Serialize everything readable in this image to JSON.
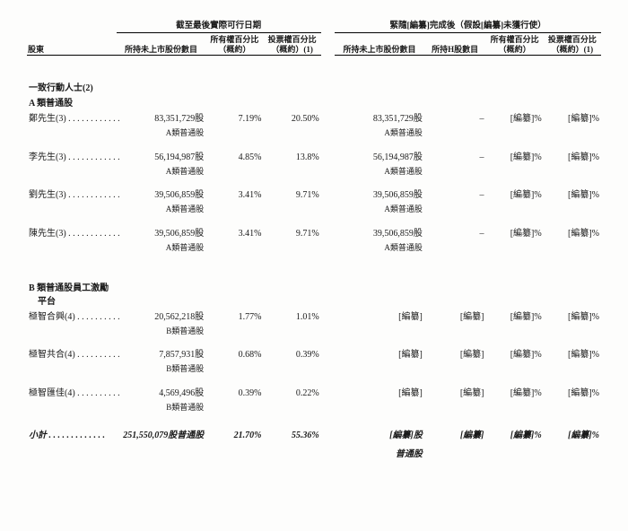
{
  "header": {
    "group_left": "截至最後實際可行日期",
    "group_right": "緊隨[編纂]完成後（假設[編纂]未獲行使）",
    "col_shareholder": "股東",
    "col_unlisted_shares": "所持未上市股份數目",
    "col_all_pct": "所有權百分比\n（概約）",
    "col_vote_pct": "投票權百分比\n（概約）(1)",
    "col_unlisted_shares_r": "所持未上市股份數目",
    "col_h_shares": "所持H股數目",
    "col_all_pct_r": "所有權百分比\n（概約）",
    "col_vote_pct_r": "投票權百分比\n（概約）(1)"
  },
  "sections": {
    "concert": "一致行動人士(2)",
    "classA": "A 類普通股",
    "classB_incentive": "B 類普通股員工激勵",
    "platform": "平台"
  },
  "share_note_A": "A類普通股",
  "share_note_B": "B類普通股",
  "subtotal_note": "普通股",
  "rows": {
    "r1": {
      "name": "鄭先生(3) . . . . . . . . . . . .",
      "shares": "83,351,729股",
      "all_pct": "7.19%",
      "vote_pct": "20.50%",
      "shares_r": "83,351,729股",
      "h": "–",
      "all_pct_r": "[編纂]%",
      "vote_pct_r": "[編纂]%"
    },
    "r2": {
      "name": "李先生(3) . . . . . . . . . . . .",
      "shares": "56,194,987股",
      "all_pct": "4.85%",
      "vote_pct": "13.8%",
      "shares_r": "56,194,987股",
      "h": "–",
      "all_pct_r": "[編纂]%",
      "vote_pct_r": "[編纂]%"
    },
    "r3": {
      "name": "劉先生(3) . . . . . . . . . . . .",
      "shares": "39,506,859股",
      "all_pct": "3.41%",
      "vote_pct": "9.71%",
      "shares_r": "39,506,859股",
      "h": "–",
      "all_pct_r": "[編纂]%",
      "vote_pct_r": "[編纂]%"
    },
    "r4": {
      "name": "陳先生(3) . . . . . . . . . . . .",
      "shares": "39,506,859股",
      "all_pct": "3.41%",
      "vote_pct": "9.71%",
      "shares_r": "39,506,859股",
      "h": "–",
      "all_pct_r": "[編纂]%",
      "vote_pct_r": "[編纂]%"
    },
    "b1": {
      "name": "極智合興(4) . . . . . . . . . .",
      "shares": "20,562,218股",
      "all_pct": "1.77%",
      "vote_pct": "1.01%",
      "shares_r": "[編纂]",
      "h": "[編纂]",
      "all_pct_r": "[編纂]%",
      "vote_pct_r": "[編纂]%"
    },
    "b2": {
      "name": "極智共合(4) . . . . . . . . . .",
      "shares": "7,857,931股",
      "all_pct": "0.68%",
      "vote_pct": "0.39%",
      "shares_r": "[編纂]",
      "h": "[編纂]",
      "all_pct_r": "[編纂]%",
      "vote_pct_r": "[編纂]%"
    },
    "b3": {
      "name": "極智匯佳(4) . . . . . . . . . .",
      "shares": "4,569,496股",
      "all_pct": "0.39%",
      "vote_pct": "0.22%",
      "shares_r": "[編纂]",
      "h": "[編纂]",
      "all_pct_r": "[編纂]%",
      "vote_pct_r": "[編纂]%"
    }
  },
  "subtotal": {
    "name": "小計 . . . . . . . . . . . . .",
    "shares": "251,550,079股普通股",
    "all_pct": "21.70%",
    "vote_pct": "55.36%",
    "shares_r": "[編纂]股",
    "h": "[編纂]",
    "all_pct_r": "[編纂]%",
    "vote_pct_r": "[編纂]%"
  },
  "colors": {
    "bg": "#fdfdfc",
    "text": "#1a1a1a",
    "rule": "#000000"
  }
}
